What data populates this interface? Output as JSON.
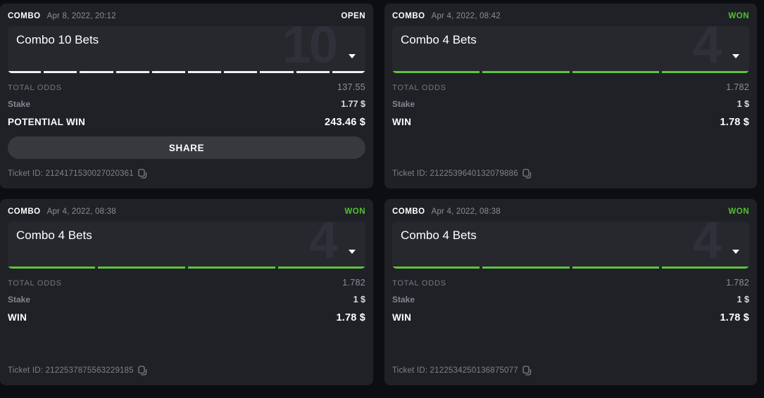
{
  "colors": {
    "won_green": "#4ec32c",
    "segment_green": "#5ec43c",
    "open_white": "#ffffff"
  },
  "cards": [
    {
      "type_label": "COMBO",
      "date": "Apr 8, 2022, 20:12",
      "status": "OPEN",
      "status_kind": "open",
      "title": "Combo 10 Bets",
      "watermark": "10",
      "legs": 10,
      "total_odds_label": "TOTAL ODDS",
      "total_odds": "137.55",
      "stake_label": "Stake",
      "stake": "1.77 $",
      "result_label": "POTENTIAL WIN",
      "result": "243.46 $",
      "share_label": "SHARE",
      "ticket": "Ticket ID: 2124171530027020361"
    },
    {
      "type_label": "COMBO",
      "date": "Apr 4, 2022, 08:42",
      "status": "WON",
      "status_kind": "won",
      "title": "Combo 4 Bets",
      "watermark": "4",
      "legs": 4,
      "total_odds_label": "TOTAL ODDS",
      "total_odds": "1.782",
      "stake_label": "Stake",
      "stake": "1 $",
      "result_label": "WIN",
      "result": "1.78 $",
      "ticket": "Ticket ID: 2122539640132079886"
    },
    {
      "type_label": "COMBO",
      "date": "Apr 4, 2022, 08:38",
      "status": "WON",
      "status_kind": "won",
      "title": "Combo 4 Bets",
      "watermark": "4",
      "legs": 4,
      "total_odds_label": "TOTAL ODDS",
      "total_odds": "1.782",
      "stake_label": "Stake",
      "stake": "1 $",
      "result_label": "WIN",
      "result": "1.78 $",
      "ticket": "Ticket ID: 2122537875563229185"
    },
    {
      "type_label": "COMBO",
      "date": "Apr 4, 2022, 08:38",
      "status": "WON",
      "status_kind": "won",
      "title": "Combo 4 Bets",
      "watermark": "4",
      "legs": 4,
      "total_odds_label": "TOTAL ODDS",
      "total_odds": "1.782",
      "stake_label": "Stake",
      "stake": "1 $",
      "result_label": "WIN",
      "result": "1.78 $",
      "ticket": "Ticket ID: 2122534250136875077"
    }
  ]
}
